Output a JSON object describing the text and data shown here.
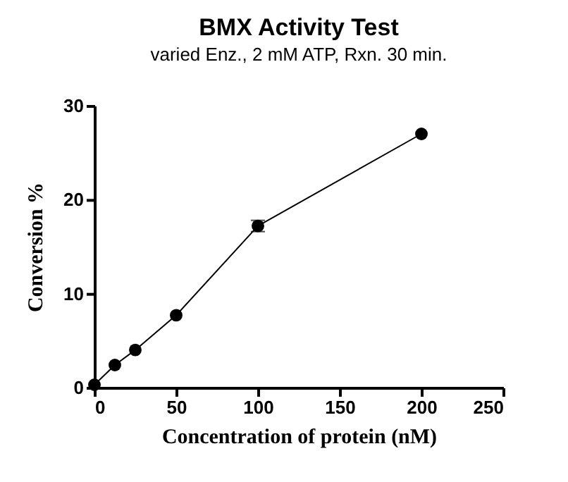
{
  "chart_data": {
    "type": "line",
    "title": "BMX Activity Test",
    "subtitle": "varied Enz., 2 mM ATP, Rxn. 30 min.",
    "xlabel": "Concentration of protein (nM)",
    "ylabel": "Conversion %",
    "x": [
      0,
      12.5,
      25,
      50,
      100,
      200
    ],
    "series": [
      {
        "color": "#000000",
        "values": [
          0.3,
          2.4,
          4.0,
          7.7,
          17.2,
          27.0
        ],
        "errors": [
          null,
          null,
          null,
          null,
          0.6,
          null
        ]
      }
    ],
    "xlim": [
      0,
      250
    ],
    "xticks": [
      0,
      50,
      100,
      150,
      200,
      250
    ],
    "ylim": [
      0,
      30
    ],
    "yticks": [
      0,
      10,
      20,
      30
    ],
    "marker": "circle",
    "line_style": "solid",
    "grid": false
  }
}
